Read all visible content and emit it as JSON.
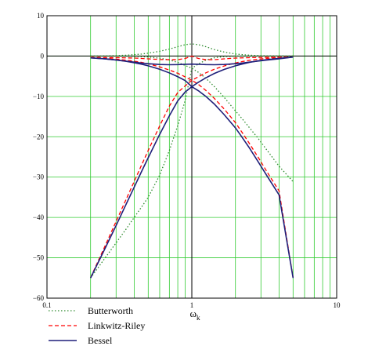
{
  "chart_data": {
    "type": "line",
    "xscale": "log",
    "xlim": [
      0.1,
      10
    ],
    "ylim": [
      -60,
      10
    ],
    "xticks": [
      0.1,
      1,
      10
    ],
    "xtick_labels": [
      "0.1",
      "1",
      "10"
    ],
    "yticks": [
      10,
      0,
      -10,
      -20,
      -30,
      -40,
      -50,
      -60
    ],
    "ytick_labels": [
      "10",
      "0",
      "−10",
      "−20",
      "−30",
      "−40",
      "−50",
      "−60"
    ],
    "xlabel": "ω",
    "xlabel_sub": "k",
    "ylabel": "",
    "grid": true,
    "legend_position": "bottom-left (below plot)",
    "x": [
      0.2,
      0.25,
      0.3,
      0.35,
      0.4,
      0.45,
      0.5,
      0.6,
      0.7,
      0.8,
      0.9,
      1,
      1.11,
      1.25,
      1.43,
      1.67,
      2,
      2.22,
      2.5,
      2.86,
      3.33,
      4,
      5
    ],
    "series": [
      {
        "name": "Butterworth",
        "color": "#2e8b2e",
        "dash": "1.5,2.5",
        "curves": [
          {
            "y": [
              -0.01,
              -0.02,
              -0.03,
              -0.06,
              -0.1,
              -0.16,
              -0.25,
              -0.53,
              -0.97,
              -1.58,
              -2.34,
              -3.01,
              -4.04,
              -5.52,
              -7.56,
              -10.21,
              -13.59,
              -15.5,
              -17.77,
              -20.34,
              -23.5,
              -27.3,
              -31.13
            ]
          },
          {
            "y": [
              -55,
              -50.2,
              -46.3,
              -42.98,
              -40.0,
              -37.4,
              -35.0,
              -29.5,
              -23.4,
              -17.2,
              -11.0,
              -3.01,
              -1.96,
              -1.0,
              -0.42,
              -0.15,
              -0.05,
              -0.03,
              -0.015,
              -0.01,
              -0.005,
              -0.002,
              0
            ]
          },
          {
            "y": [
              0.01,
              0.05,
              0.11,
              0.2,
              0.34,
              0.5,
              0.71,
              1.18,
              1.73,
              2.32,
              2.82,
              3.01,
              2.82,
              2.32,
              1.6,
              1.0,
              0.51,
              0.35,
              0.21,
              0.12,
              0.06,
              0.03,
              0.0
            ]
          }
        ]
      },
      {
        "name": "Linkwitz-Riley",
        "color": "#ff0000",
        "dash": "5,3",
        "curves": [
          {
            "y": [
              -0.35,
              -0.53,
              -0.76,
              -1.01,
              -1.28,
              -1.58,
              -1.94,
              -2.68,
              -3.47,
              -4.27,
              -5.17,
              -6.02,
              -7.02,
              -8.52,
              -10.5,
              -13.1,
              -16.5,
              -18.9,
              -21.7,
              -25.0,
              -28.9,
              -33.4,
              -54.9
            ]
          },
          {
            "y": [
              -54.9,
              -47.3,
              -41.0,
              -35.7,
              -31.1,
              -27.0,
              -23.4,
              -17.3,
              -12.4,
              -9.0,
              -7.4,
              -6.02,
              -5.12,
              -4.16,
              -3.27,
              -2.46,
              -1.72,
              -1.38,
              -1.06,
              -0.79,
              -0.56,
              -0.36,
              -0.2
            ]
          },
          {
            "y": [
              -0.3,
              -0.35,
              -0.4,
              -0.45,
              -0.5,
              -0.6,
              -0.7,
              -0.85,
              -0.9,
              -0.9,
              -0.6,
              0.0,
              -0.6,
              -0.9,
              -0.9,
              -0.7,
              -0.5,
              -0.45,
              -0.4,
              -0.35,
              -0.32,
              -0.3,
              -0.28
            ]
          }
        ]
      },
      {
        "name": "Bessel",
        "color": "#1f1f7a",
        "dash": "",
        "curves": [
          {
            "y": [
              -0.45,
              -0.68,
              -0.98,
              -1.3,
              -1.65,
              -2.03,
              -2.42,
              -3.27,
              -4.18,
              -5.12,
              -6.08,
              -7.6,
              -8.6,
              -10.0,
              -11.9,
              -14.5,
              -17.8,
              -20.1,
              -22.8,
              -26.1,
              -29.9,
              -34.4,
              -55.0
            ]
          },
          {
            "y": [
              -55.0,
              -47.9,
              -42.0,
              -36.9,
              -32.5,
              -28.6,
              -25.2,
              -19.4,
              -14.8,
              -11.1,
              -8.9,
              -7.6,
              -6.5,
              -5.4,
              -4.32,
              -3.32,
              -2.42,
              -2.0,
              -1.57,
              -1.2,
              -0.88,
              -0.57,
              -0.25
            ]
          },
          {
            "y": [
              -0.45,
              -0.68,
              -0.98,
              -1.25,
              -1.5,
              -1.75,
              -1.9,
              -2.1,
              -2.15,
              -2.12,
              -2.05,
              -2.0,
              -2.05,
              -2.12,
              -2.15,
              -2.1,
              -1.9,
              -1.75,
              -1.5,
              -1.25,
              -0.98,
              -0.68,
              -0.25
            ]
          }
        ]
      }
    ]
  }
}
